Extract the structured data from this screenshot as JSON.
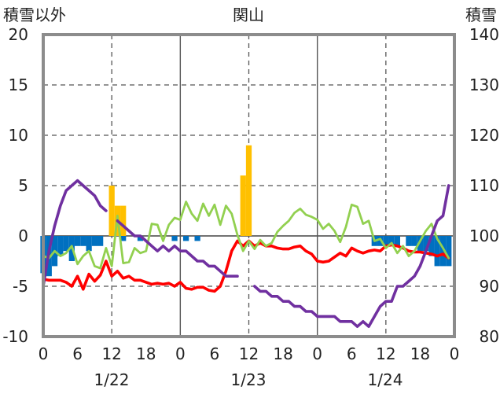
{
  "chart_data": {
    "type": "line",
    "title": "関山",
    "ylabel_left": "積雪以外",
    "ylabel_right": "積雪",
    "left_axis": {
      "ylim": [
        -10,
        20
      ],
      "ticks": [
        "20",
        "15",
        "10",
        "5",
        "0",
        "-5",
        "-10"
      ]
    },
    "right_axis": {
      "ylim": [
        80,
        140
      ],
      "ticks": [
        "140",
        "130",
        "120",
        "110",
        "100",
        "90",
        "80"
      ]
    },
    "x_range_hours": [
      0,
      72
    ],
    "x_tick_labels": [
      "0",
      "6",
      "12",
      "18",
      "0",
      "6",
      "12",
      "18",
      "0",
      "6",
      "12",
      "18",
      "0"
    ],
    "date_labels": [
      "1/22",
      "1/23",
      "1/24"
    ],
    "grid": {
      "vertical_dashed_hours": [
        12,
        36,
        60
      ],
      "vertical_solid_hours": [
        24,
        48
      ],
      "horizontal_dashed": [
        -5,
        5,
        10,
        15
      ]
    },
    "colors": {
      "yellow_bar": "#ffc000",
      "blue_bar": "#0070c0",
      "red_line": "#ff0000",
      "green_line": "#92d050",
      "purple_line": "#7030a0"
    },
    "series": [
      {
        "axis": "left",
        "style": "bar",
        "color": "#ffc000",
        "x": [
          12,
          13,
          14,
          35,
          36
        ],
        "values": [
          5,
          3,
          3,
          6,
          9
        ]
      },
      {
        "axis": "left",
        "style": "bar",
        "color": "#0070c0",
        "x": [
          0,
          1,
          2,
          3,
          4,
          5,
          6,
          7,
          8,
          9,
          10,
          14,
          17,
          23,
          25,
          27,
          58,
          59,
          60,
          61,
          62,
          64,
          65,
          66,
          67,
          68,
          69,
          70,
          71
        ],
        "values": [
          -3.7,
          -4,
          -3,
          -2,
          -1.5,
          -2.5,
          -1,
          -1,
          -1.5,
          -1,
          -1,
          -0.5,
          -0.5,
          -0.5,
          -0.5,
          -0.5,
          -1,
          -1,
          -1,
          -1,
          -1,
          -1,
          -1,
          -1.5,
          -1.5,
          -2,
          -3,
          -3,
          -3
        ]
      },
      {
        "axis": "left",
        "style": "line",
        "color": "#ff0000",
        "x": [
          0,
          1,
          2,
          3,
          4,
          5,
          6,
          7,
          8,
          9,
          10,
          11,
          12,
          13,
          14,
          15,
          16,
          17,
          18,
          19,
          20,
          21,
          22,
          23,
          24,
          25,
          26,
          27,
          28,
          29,
          30,
          31,
          32,
          33,
          34,
          35,
          36,
          37,
          38,
          39,
          40,
          41,
          42,
          43,
          44,
          45,
          46,
          47,
          48,
          49,
          50,
          51,
          52,
          53,
          54,
          55,
          56,
          57,
          58,
          59,
          60,
          61,
          62,
          63,
          64,
          65,
          66,
          67,
          68,
          69,
          70,
          71
        ],
        "values": [
          -4.3,
          -4.4,
          -4.4,
          -4.4,
          -4.6,
          -5,
          -4,
          -5.3,
          -3.8,
          -4.5,
          -3.9,
          -2.5,
          -4,
          -3.5,
          -4.2,
          -4,
          -4.4,
          -4.4,
          -4.6,
          -4.8,
          -4.7,
          -4.8,
          -4.7,
          -5,
          -4.6,
          -5.2,
          -5.3,
          -5.1,
          -5.1,
          -5.4,
          -5.5,
          -5,
          -3.5,
          -1.5,
          -0.5,
          -1,
          -0.5,
          -1,
          -0.7,
          -1,
          -1,
          -1.2,
          -1.3,
          -1.3,
          -1.1,
          -1,
          -1.5,
          -1.8,
          -2.5,
          -2.6,
          -2.5,
          -2.1,
          -1.7,
          -2,
          -1.2,
          -1.5,
          -1.7,
          -1.5,
          -1.4,
          -1.5,
          -1,
          -0.9,
          -1,
          -1.2,
          -1.5,
          -1.6,
          -1.6,
          -1.7,
          -1.8,
          -2,
          -1.8,
          -2.2
        ]
      },
      {
        "axis": "left",
        "style": "line",
        "color": "#92d050",
        "x": [
          0,
          1,
          2,
          3,
          4,
          5,
          6,
          7,
          8,
          9,
          10,
          11,
          12,
          13,
          14,
          15,
          16,
          17,
          18,
          19,
          20,
          21,
          22,
          23,
          24,
          25,
          26,
          27,
          28,
          29,
          30,
          31,
          32,
          33,
          34,
          35,
          36,
          37,
          38,
          39,
          40,
          41,
          42,
          43,
          44,
          45,
          46,
          47,
          48,
          49,
          50,
          51,
          52,
          53,
          54,
          55,
          56,
          57,
          58,
          59,
          60,
          61,
          62,
          63,
          64,
          65,
          66,
          67,
          68,
          69,
          70,
          71
        ],
        "values": [
          -2,
          -2.2,
          -1.5,
          -2,
          -1.7,
          -1,
          -2.8,
          -2,
          -1.5,
          -3,
          -3.2,
          -1.2,
          -3,
          2,
          -2.7,
          -2.6,
          -1.2,
          -1.7,
          -1.5,
          1.2,
          1.1,
          -0.5,
          1.1,
          1.8,
          1.6,
          3.4,
          2.2,
          1.5,
          3.2,
          2,
          3.1,
          1.1,
          3,
          2.2,
          0.1,
          -1.5,
          -0.5,
          -1.3,
          -0.4,
          -1,
          -0.7,
          0.4,
          1,
          1.5,
          2.3,
          2.7,
          2.1,
          1.9,
          1.6,
          0.7,
          1.2,
          0.5,
          -0.6,
          0.9,
          3.1,
          2.9,
          1.2,
          1.5,
          -0.5,
          -0.3,
          -1.2,
          -0.7,
          -1.7,
          -1,
          -2,
          -1.5,
          -0.5,
          0.5,
          1.2,
          -0.3,
          -1.2,
          -2.2
        ]
      },
      {
        "axis": "right",
        "style": "line",
        "color": "#7030a0",
        "segments": [
          {
            "x": [
              0,
              1,
              2,
              3,
              4,
              5,
              6,
              7,
              8,
              9,
              10,
              11
            ],
            "values": [
              90,
              97,
              102,
              106,
              109,
              110,
              111,
              110,
              109,
              108,
              106,
              105
            ]
          },
          {
            "x": [
              13,
              14,
              15,
              16,
              17,
              18,
              19,
              20,
              21,
              22,
              23,
              24,
              25,
              26,
              27,
              28,
              29,
              30,
              31,
              32,
              33,
              34
            ],
            "values": [
              103,
              102,
              101,
              100,
              100,
              99,
              98,
              97,
              98,
              97,
              98,
              97,
              97,
              96,
              95,
              95,
              94,
              94,
              93,
              92,
              92,
              92
            ]
          },
          {
            "x": [
              37,
              38,
              39,
              40,
              41,
              42,
              43,
              44,
              45,
              46,
              47,
              48,
              49,
              50,
              51,
              52,
              53,
              54,
              55,
              56,
              57,
              58,
              59,
              60,
              61,
              62,
              63,
              64,
              65,
              66,
              67,
              68,
              69,
              70,
              71
            ],
            "values": [
              90,
              89,
              89,
              88,
              88,
              87,
              87,
              86,
              86,
              85,
              85,
              84,
              84,
              84,
              84,
              83,
              83,
              83,
              82,
              83,
              82,
              84,
              86,
              87,
              87,
              90,
              90,
              91,
              92,
              94,
              97,
              100,
              103,
              104,
              110
            ]
          }
        ]
      }
    ]
  }
}
